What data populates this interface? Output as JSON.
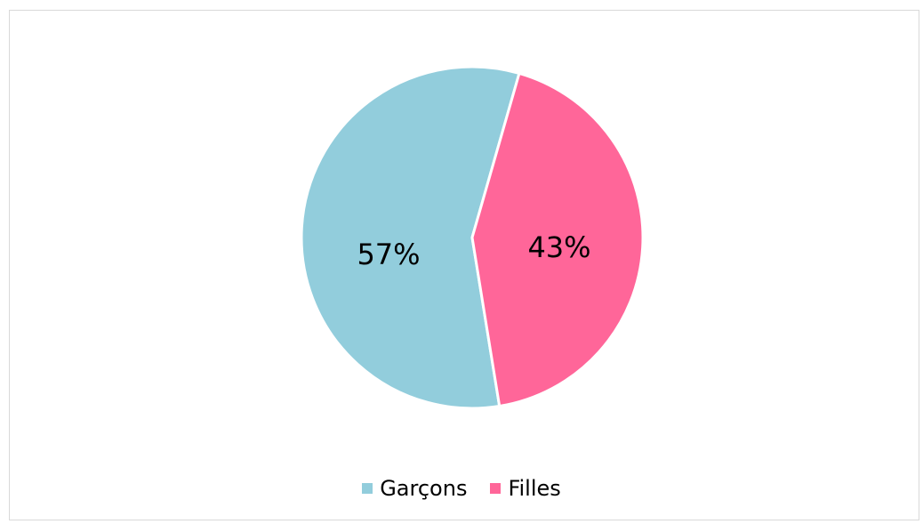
{
  "chart_data": {
    "type": "pie",
    "categories": [
      "Garçons",
      "Filles"
    ],
    "values": [
      57,
      43
    ],
    "data_labels": [
      "57%",
      "43%"
    ],
    "colors": [
      "#92cddc",
      "#ff6699"
    ],
    "legend": {
      "position": "bottom",
      "entries": [
        "Garçons",
        "Filles"
      ]
    },
    "title": ""
  }
}
